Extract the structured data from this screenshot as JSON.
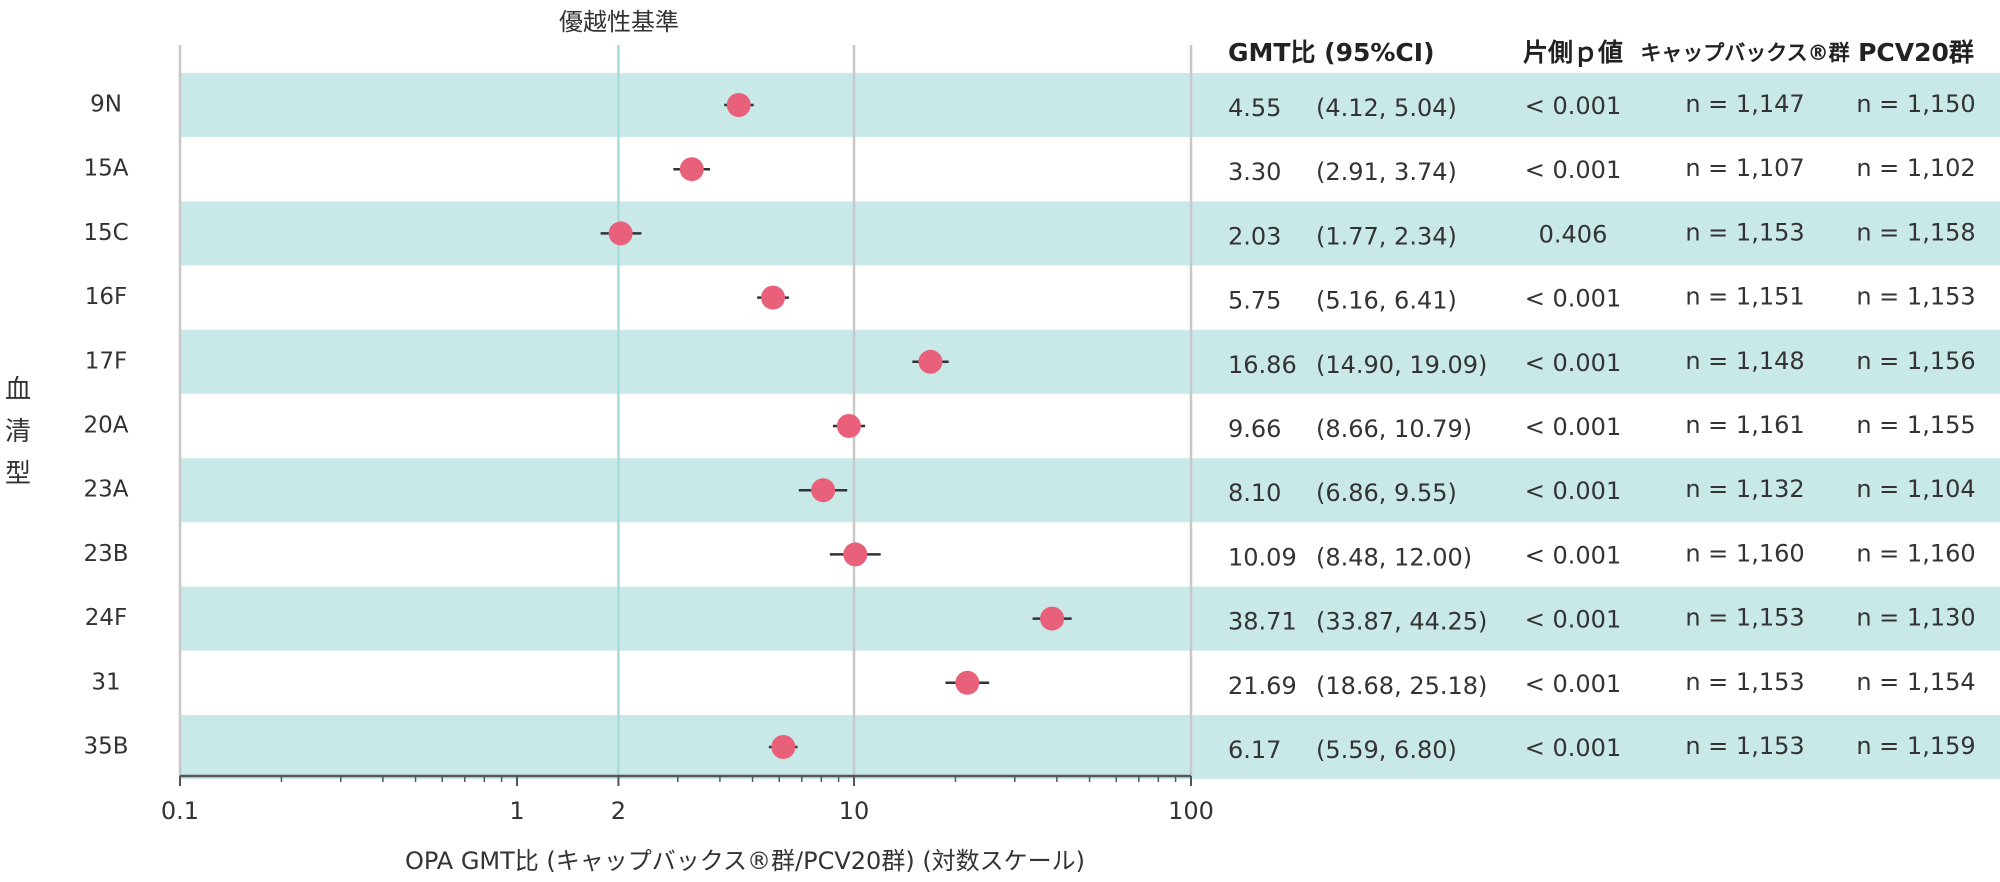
{
  "chart_data": {
    "type": "forest",
    "title": "優越性基準",
    "x_label": "OPA GMT比 (キャップバックス®群/PCV20群) (対数スケール)",
    "y_label": "血清型",
    "log_x": true,
    "xlim": [
      0.1,
      100
    ],
    "xticks": [
      {
        "value": 0.1,
        "label": "0.1"
      },
      1,
      2,
      10,
      100
    ],
    "xminor_ticks": [
      0.2,
      0.3,
      0.4,
      0.5,
      0.6,
      0.7,
      0.8,
      0.9,
      3,
      4,
      5,
      6,
      7,
      8,
      9,
      20,
      30,
      40,
      50,
      60,
      70,
      80,
      90
    ],
    "gridlines": [
      0.1,
      10,
      100
    ],
    "reference_line": 2,
    "reference_color": "#a8dcd9",
    "marker_color": "#e8607a",
    "band_color": "#c9e8e8",
    "categories": [
      "9N",
      "15A",
      "15C",
      "16F",
      "17F",
      "20A",
      "23A",
      "23B",
      "24F",
      "31",
      "35B"
    ],
    "values": [
      4.55,
      3.3,
      2.03,
      5.75,
      16.86,
      9.66,
      8.1,
      10.09,
      38.71,
      21.69,
      6.17
    ],
    "value_labels": [
      "4.55",
      "3.30",
      "2.03",
      "5.75",
      "16.86",
      "9.66",
      "8.10",
      "10.09",
      "38.71",
      "21.69",
      "6.17"
    ],
    "ci_low": [
      4.12,
      2.91,
      1.77,
      5.16,
      14.9,
      8.66,
      6.86,
      8.48,
      33.87,
      18.68,
      5.59
    ],
    "ci_high": [
      5.04,
      3.74,
      2.34,
      6.41,
      19.09,
      10.79,
      9.55,
      12,
      44.25,
      25.18,
      6.8
    ],
    "ci_labels": [
      "(4.12, 5.04)",
      "(2.91, 3.74)",
      "(1.77, 2.34)",
      "(5.16, 6.41)",
      "(14.90, 19.09)",
      "(8.66, 10.79)",
      "(6.86, 9.55)",
      "(8.48, 12.00)",
      "(33.87, 44.25)",
      "(18.68, 25.18)",
      "(5.59, 6.80)"
    ],
    "table_headers": [
      "GMT比 (95%CI)",
      "片側ｐ値",
      "キャップバックス®群",
      "PCV20群"
    ],
    "p_values": [
      "< 0.001",
      "< 0.001",
      "0.406",
      "< 0.001",
      "< 0.001",
      "< 0.001",
      "< 0.001",
      "< 0.001",
      "< 0.001",
      "< 0.001",
      "< 0.001"
    ],
    "n_group1": [
      "n = 1,147",
      "n = 1,107",
      "n = 1,153",
      "n = 1,151",
      "n = 1,148",
      "n = 1,161",
      "n = 1,132",
      "n = 1,160",
      "n = 1,153",
      "n = 1,153",
      "n = 1,153"
    ],
    "n_group2": [
      "n = 1,150",
      "n = 1,102",
      "n = 1,158",
      "n = 1,153",
      "n = 1,156",
      "n = 1,155",
      "n = 1,104",
      "n = 1,160",
      "n = 1,130",
      "n = 1,154",
      "n = 1,159"
    ]
  }
}
